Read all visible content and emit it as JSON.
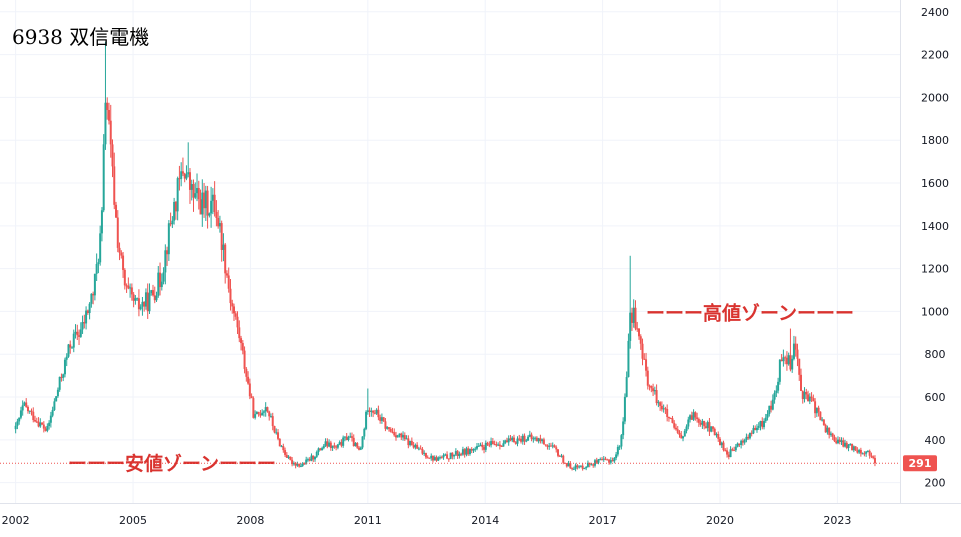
{
  "chart_data": {
    "type": "candlestick",
    "title": "6938 双信電機",
    "x_ticks": [
      "2002",
      "2005",
      "2008",
      "2011",
      "2014",
      "2017",
      "2020",
      "2023"
    ],
    "y_ticks": [
      200,
      400,
      600,
      800,
      1000,
      1200,
      1400,
      1600,
      1800,
      2000,
      2200,
      2400
    ],
    "xlim": [
      2001.6,
      2024.6
    ],
    "ylim": [
      105,
      2455
    ],
    "last_price": 291,
    "last_price_label": "291",
    "annotations": [
      {
        "text": "ーーー安値ゾーンーーー",
        "price": 291
      },
      {
        "text": "ーーー高値ゾーンーーー",
        "price": 995
      }
    ],
    "colors": {
      "up": "#26a69a",
      "down": "#ef5350",
      "grid": "#f0f3fa",
      "zone": "#d9332f",
      "price_line": "#ef5350"
    },
    "series": [
      {
        "x": 2002.0,
        "y": 450
      },
      {
        "x": 2002.2,
        "y": 560
      },
      {
        "x": 2002.5,
        "y": 500
      },
      {
        "x": 2002.8,
        "y": 440
      },
      {
        "x": 2003.1,
        "y": 650
      },
      {
        "x": 2003.4,
        "y": 850
      },
      {
        "x": 2003.7,
        "y": 920
      },
      {
        "x": 2004.0,
        "y": 1100
      },
      {
        "x": 2004.2,
        "y": 1400
      },
      {
        "x": 2004.3,
        "y": 2050
      },
      {
        "x": 2004.4,
        "y": 1800
      },
      {
        "x": 2004.6,
        "y": 1350
      },
      {
        "x": 2004.8,
        "y": 1100
      },
      {
        "x": 2005.1,
        "y": 1020
      },
      {
        "x": 2005.4,
        "y": 1050
      },
      {
        "x": 2005.7,
        "y": 1150
      },
      {
        "x": 2006.0,
        "y": 1450
      },
      {
        "x": 2006.3,
        "y": 1680
      },
      {
        "x": 2006.5,
        "y": 1550
      },
      {
        "x": 2006.8,
        "y": 1500
      },
      {
        "x": 2007.1,
        "y": 1500
      },
      {
        "x": 2007.3,
        "y": 1300
      },
      {
        "x": 2007.5,
        "y": 1050
      },
      {
        "x": 2007.7,
        "y": 900
      },
      {
        "x": 2007.9,
        "y": 700
      },
      {
        "x": 2008.1,
        "y": 500
      },
      {
        "x": 2008.4,
        "y": 560
      },
      {
        "x": 2008.7,
        "y": 400
      },
      {
        "x": 2009.0,
        "y": 300
      },
      {
        "x": 2009.3,
        "y": 280
      },
      {
        "x": 2009.6,
        "y": 320
      },
      {
        "x": 2009.9,
        "y": 380
      },
      {
        "x": 2010.2,
        "y": 360
      },
      {
        "x": 2010.5,
        "y": 420
      },
      {
        "x": 2010.8,
        "y": 340
      },
      {
        "x": 2011.0,
        "y": 560
      },
      {
        "x": 2011.2,
        "y": 530
      },
      {
        "x": 2011.5,
        "y": 450
      },
      {
        "x": 2011.8,
        "y": 420
      },
      {
        "x": 2012.1,
        "y": 380
      },
      {
        "x": 2012.4,
        "y": 340
      },
      {
        "x": 2012.7,
        "y": 310
      },
      {
        "x": 2013.0,
        "y": 320
      },
      {
        "x": 2013.4,
        "y": 340
      },
      {
        "x": 2013.8,
        "y": 360
      },
      {
        "x": 2014.2,
        "y": 380
      },
      {
        "x": 2014.6,
        "y": 390
      },
      {
        "x": 2015.0,
        "y": 410
      },
      {
        "x": 2015.4,
        "y": 400
      },
      {
        "x": 2015.8,
        "y": 350
      },
      {
        "x": 2016.1,
        "y": 280
      },
      {
        "x": 2016.4,
        "y": 270
      },
      {
        "x": 2016.7,
        "y": 290
      },
      {
        "x": 2017.0,
        "y": 300
      },
      {
        "x": 2017.3,
        "y": 310
      },
      {
        "x": 2017.5,
        "y": 420
      },
      {
        "x": 2017.7,
        "y": 950
      },
      {
        "x": 2017.8,
        "y": 1000
      },
      {
        "x": 2018.0,
        "y": 800
      },
      {
        "x": 2018.2,
        "y": 650
      },
      {
        "x": 2018.5,
        "y": 560
      },
      {
        "x": 2018.8,
        "y": 460
      },
      {
        "x": 2019.0,
        "y": 400
      },
      {
        "x": 2019.3,
        "y": 520
      },
      {
        "x": 2019.6,
        "y": 480
      },
      {
        "x": 2019.9,
        "y": 420
      },
      {
        "x": 2020.2,
        "y": 330
      },
      {
        "x": 2020.5,
        "y": 380
      },
      {
        "x": 2020.8,
        "y": 430
      },
      {
        "x": 2021.1,
        "y": 480
      },
      {
        "x": 2021.4,
        "y": 600
      },
      {
        "x": 2021.6,
        "y": 820
      },
      {
        "x": 2021.8,
        "y": 760
      },
      {
        "x": 2021.9,
        "y": 860
      },
      {
        "x": 2022.1,
        "y": 620
      },
      {
        "x": 2022.4,
        "y": 560
      },
      {
        "x": 2022.7,
        "y": 450
      },
      {
        "x": 2023.0,
        "y": 390
      },
      {
        "x": 2023.3,
        "y": 370
      },
      {
        "x": 2023.6,
        "y": 350
      },
      {
        "x": 2023.9,
        "y": 330
      },
      {
        "x": 2024.0,
        "y": 291
      }
    ]
  }
}
